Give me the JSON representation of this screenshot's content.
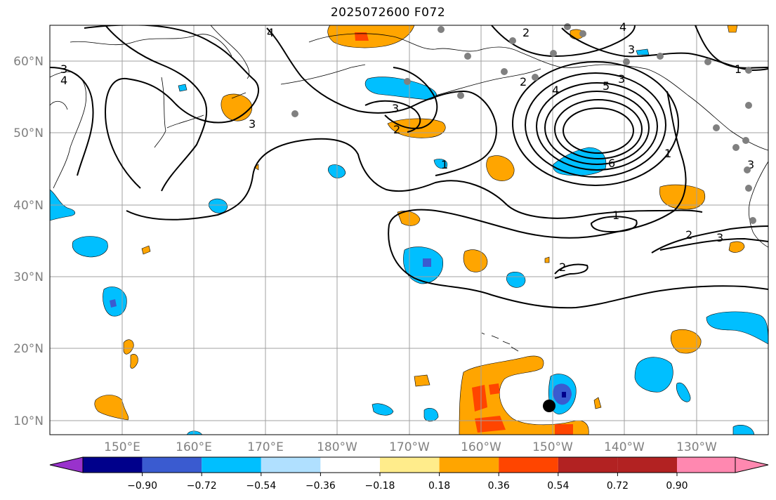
{
  "title": "2025072600 F072",
  "lat_labels": [
    "60°N",
    "50°N",
    "40°N",
    "30°N",
    "20°N",
    "10°N"
  ],
  "lon_labels": [
    "150°E",
    "160°E",
    "170°E",
    "180°W",
    "170°W",
    "160°W",
    "150°W",
    "140°W",
    "130°W"
  ],
  "colorbar": {
    "ticks": [
      "−0.90",
      "−0.72",
      "−0.54",
      "−0.36",
      "−0.18",
      "0.18",
      "0.36",
      "0.54",
      "0.72",
      "0.90"
    ],
    "colors": [
      "#9932cc",
      "#00008b",
      "#3a5bd0",
      "#00bfff",
      "#b0e0ff",
      "#ffffff",
      "#ffec8b",
      "#ffa500",
      "#ff4500",
      "#b22222",
      "#ff88b0"
    ]
  },
  "contour_labels": [
    "4",
    "3",
    "4",
    "3",
    "2",
    "3",
    "2",
    "1",
    "4",
    "2",
    "3",
    "4",
    "5",
    "6",
    "1",
    "1",
    "2",
    "3",
    "3",
    "1",
    "2",
    "3"
  ],
  "colors": {
    "orange": "#ffa500",
    "red": "#ff4500",
    "cyan": "#00bfff",
    "blue": "#3a5bd0",
    "grid": "#a0a0a0",
    "station": "#808080"
  }
}
